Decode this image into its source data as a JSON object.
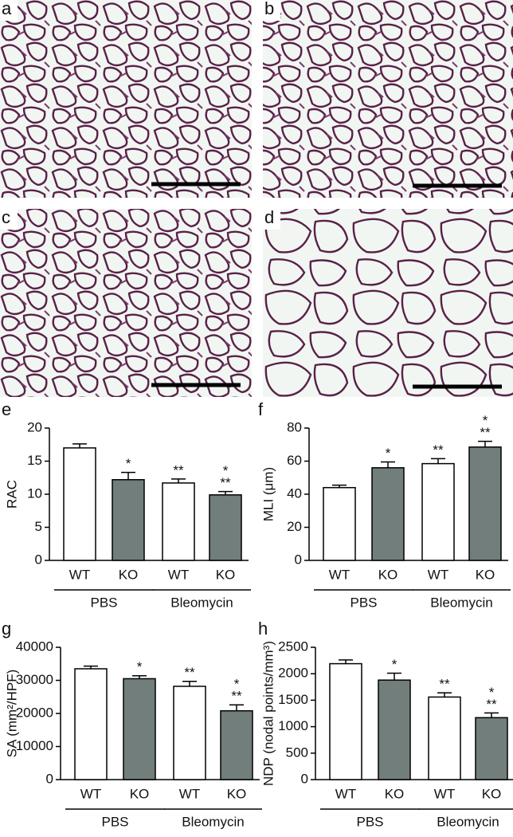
{
  "images": [
    {
      "label": "a"
    },
    {
      "label": "b"
    },
    {
      "label": "c"
    },
    {
      "label": "d"
    }
  ],
  "chart_data": [
    {
      "type": "bar",
      "panel_label": "e",
      "ylabel": "RAC",
      "categories": [
        "WT",
        "KO",
        "WT",
        "KO"
      ],
      "groups": [
        "PBS",
        "Bleomycin"
      ],
      "values": [
        17,
        12.2,
        11.7,
        9.9
      ],
      "errors": [
        0.6,
        1.1,
        0.6,
        0.5
      ],
      "bar_colors": [
        "#ffffff",
        "#727e7b",
        "#ffffff",
        "#727e7b"
      ],
      "annotations": [
        [],
        [
          "*"
        ],
        [
          "**"
        ],
        [
          "*",
          "**"
        ]
      ],
      "ylim": [
        0,
        20
      ],
      "yticks": [
        0,
        5,
        10,
        15,
        20
      ]
    },
    {
      "type": "bar",
      "panel_label": "f",
      "ylabel": "MLI (μm)",
      "categories": [
        "WT",
        "KO",
        "WT",
        "KO"
      ],
      "groups": [
        "PBS",
        "Bleomycin"
      ],
      "values": [
        44,
        56,
        58.5,
        68.5
      ],
      "errors": [
        1.5,
        3.5,
        3,
        3.5
      ],
      "bar_colors": [
        "#ffffff",
        "#727e7b",
        "#ffffff",
        "#727e7b"
      ],
      "annotations": [
        [],
        [
          "*"
        ],
        [
          "**"
        ],
        [
          "*",
          "**"
        ]
      ],
      "ylim": [
        0,
        80
      ],
      "yticks": [
        0,
        20,
        40,
        60,
        80
      ]
    },
    {
      "type": "bar",
      "panel_label": "g",
      "ylabel": "SA (mm²/HPF)",
      "categories": [
        "WT",
        "KO",
        "WT",
        "KO"
      ],
      "groups": [
        "PBS",
        "Bleomycin"
      ],
      "values": [
        33500,
        30500,
        28200,
        20800
      ],
      "errors": [
        800,
        900,
        1500,
        1800
      ],
      "bar_colors": [
        "#ffffff",
        "#727e7b",
        "#ffffff",
        "#727e7b"
      ],
      "annotations": [
        [],
        [
          "*"
        ],
        [
          "**"
        ],
        [
          "*",
          "**"
        ]
      ],
      "ylim": [
        0,
        40000
      ],
      "yticks": [
        0,
        10000,
        20000,
        30000,
        40000
      ]
    },
    {
      "type": "bar",
      "panel_label": "h",
      "ylabel": "NDP (nodal points/mm³)",
      "categories": [
        "WT",
        "KO",
        "WT",
        "KO"
      ],
      "groups": [
        "PBS",
        "Bleomycin"
      ],
      "values": [
        2190,
        1880,
        1560,
        1170
      ],
      "errors": [
        70,
        130,
        80,
        90
      ],
      "bar_colors": [
        "#ffffff",
        "#727e7b",
        "#ffffff",
        "#727e7b"
      ],
      "annotations": [
        [],
        [
          "*"
        ],
        [
          "**"
        ],
        [
          "*",
          "**"
        ]
      ],
      "ylim": [
        0,
        2500
      ],
      "yticks": [
        0,
        500,
        1000,
        1500,
        2000,
        2500
      ]
    }
  ]
}
